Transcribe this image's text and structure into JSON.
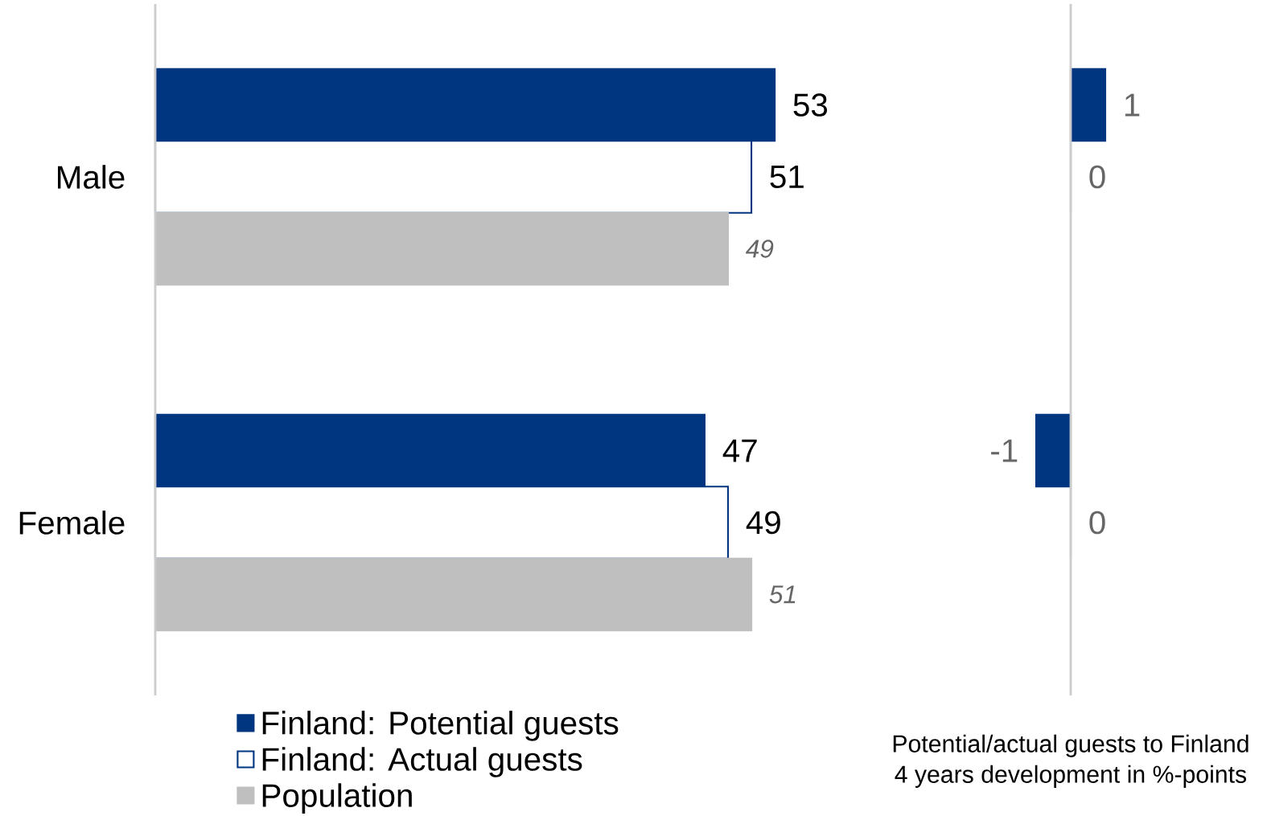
{
  "chart_data": [
    {
      "type": "bar",
      "orientation": "horizontal",
      "categories": [
        "Male",
        "Female"
      ],
      "tick_labels": "y",
      "data_labels": true,
      "legend": "bottom",
      "series": [
        {
          "name": "Finland: Potential guests",
          "color": "#003580",
          "values": [
            53,
            47
          ]
        },
        {
          "name": "Finland: Actual guests",
          "color": "#ffffff",
          "values": [
            51,
            49
          ]
        },
        {
          "name": "Population",
          "color": "#bfbfbf",
          "values": [
            49,
            51
          ]
        }
      ]
    },
    {
      "type": "bar",
      "orientation": "horizontal",
      "categories": [
        null,
        null
      ],
      "data_labels": true,
      "annotations": [
        "Potential/actual guests to Finland",
        "4 years development in %-points"
      ],
      "series": [
        {
          "color": "#003580",
          "values": [
            1,
            -1
          ]
        },
        {
          "color": "#ffffff",
          "values": [
            0,
            0
          ]
        }
      ]
    }
  ]
}
